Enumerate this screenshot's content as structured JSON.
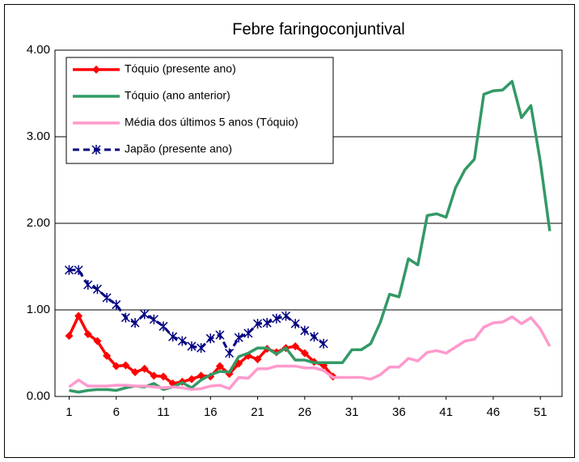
{
  "chart_data": {
    "type": "line",
    "title": "Febre faringoconjuntival",
    "x": [
      1,
      2,
      3,
      4,
      5,
      6,
      7,
      8,
      9,
      10,
      11,
      12,
      13,
      14,
      15,
      16,
      17,
      18,
      19,
      20,
      21,
      22,
      23,
      24,
      25,
      26,
      27,
      28,
      29,
      30,
      31,
      32,
      33,
      34,
      35,
      36,
      37,
      38,
      39,
      40,
      41,
      42,
      43,
      44,
      45,
      46,
      47,
      48,
      49,
      50,
      51,
      52
    ],
    "xlim": [
      -0.5,
      53.3
    ],
    "xticks": [
      1,
      6,
      11,
      16,
      21,
      26,
      31,
      36,
      41,
      46,
      51
    ],
    "ylim": [
      0,
      4
    ],
    "yticks": [
      {
        "value": 0,
        "label": "0.00"
      },
      {
        "value": 1,
        "label": "1.00"
      },
      {
        "value": 2,
        "label": "2.00"
      },
      {
        "value": 3,
        "label": "3.00"
      },
      {
        "value": 4,
        "label": "4.00"
      }
    ],
    "grid": true,
    "legend": "upper left",
    "series": [
      {
        "name": "Tóquio (presente ano)",
        "color": "#ff0000",
        "marker": "diamond",
        "values": [
          0.7,
          0.93,
          0.72,
          0.64,
          0.47,
          0.35,
          0.36,
          0.28,
          0.32,
          0.24,
          0.23,
          0.15,
          0.17,
          0.2,
          0.24,
          0.23,
          0.35,
          0.26,
          0.38,
          0.47,
          0.43,
          0.55,
          0.51,
          0.56,
          0.58,
          0.5,
          0.4,
          0.36,
          0.23,
          null,
          null,
          null,
          null,
          null,
          null,
          null,
          null,
          null,
          null,
          null,
          null,
          null,
          null,
          null,
          null,
          null,
          null,
          null,
          null,
          null,
          null,
          null
        ]
      },
      {
        "name": "Tóquio (ano anterior)",
        "color": "#339966",
        "marker": "none",
        "values": [
          0.07,
          0.05,
          0.07,
          0.08,
          0.08,
          0.07,
          0.1,
          0.12,
          0.11,
          0.15,
          0.08,
          0.11,
          0.16,
          0.1,
          0.19,
          0.25,
          0.29,
          0.28,
          0.46,
          0.5,
          0.56,
          0.56,
          0.49,
          0.56,
          0.42,
          0.42,
          0.39,
          0.39,
          0.39,
          0.39,
          0.54,
          0.54,
          0.61,
          0.85,
          1.18,
          1.15,
          1.59,
          1.52,
          2.09,
          2.11,
          2.07,
          2.41,
          2.62,
          2.74,
          3.49,
          3.53,
          3.54,
          3.64,
          3.22,
          3.36,
          2.71,
          1.91
        ]
      },
      {
        "name": "Média dos últimos 5 anos (Tóquio)",
        "color": "#ff99cc",
        "marker": "none",
        "values": [
          0.11,
          0.19,
          0.12,
          0.12,
          0.12,
          0.13,
          0.13,
          0.12,
          0.12,
          0.11,
          0.1,
          0.11,
          0.1,
          0.08,
          0.09,
          0.12,
          0.13,
          0.09,
          0.22,
          0.21,
          0.32,
          0.32,
          0.35,
          0.35,
          0.35,
          0.33,
          0.33,
          0.3,
          0.22,
          0.22,
          0.22,
          0.22,
          0.2,
          0.25,
          0.34,
          0.34,
          0.44,
          0.41,
          0.51,
          0.53,
          0.5,
          0.57,
          0.64,
          0.66,
          0.8,
          0.85,
          0.86,
          0.92,
          0.84,
          0.91,
          0.78,
          0.58
        ]
      },
      {
        "name": "Japão (presente ano)",
        "color": "#000080",
        "marker": "star",
        "dash": true,
        "values": [
          1.46,
          1.46,
          1.29,
          1.24,
          1.14,
          1.06,
          0.91,
          0.85,
          0.95,
          0.89,
          0.81,
          0.69,
          0.64,
          0.58,
          0.56,
          0.67,
          0.71,
          0.5,
          0.68,
          0.73,
          0.84,
          0.85,
          0.9,
          0.93,
          0.84,
          0.76,
          0.69,
          0.61,
          null,
          null,
          null,
          null,
          null,
          null,
          null,
          null,
          null,
          null,
          null,
          null,
          null,
          null,
          null,
          null,
          null,
          null,
          null,
          null,
          null,
          null,
          null,
          null
        ]
      }
    ]
  }
}
